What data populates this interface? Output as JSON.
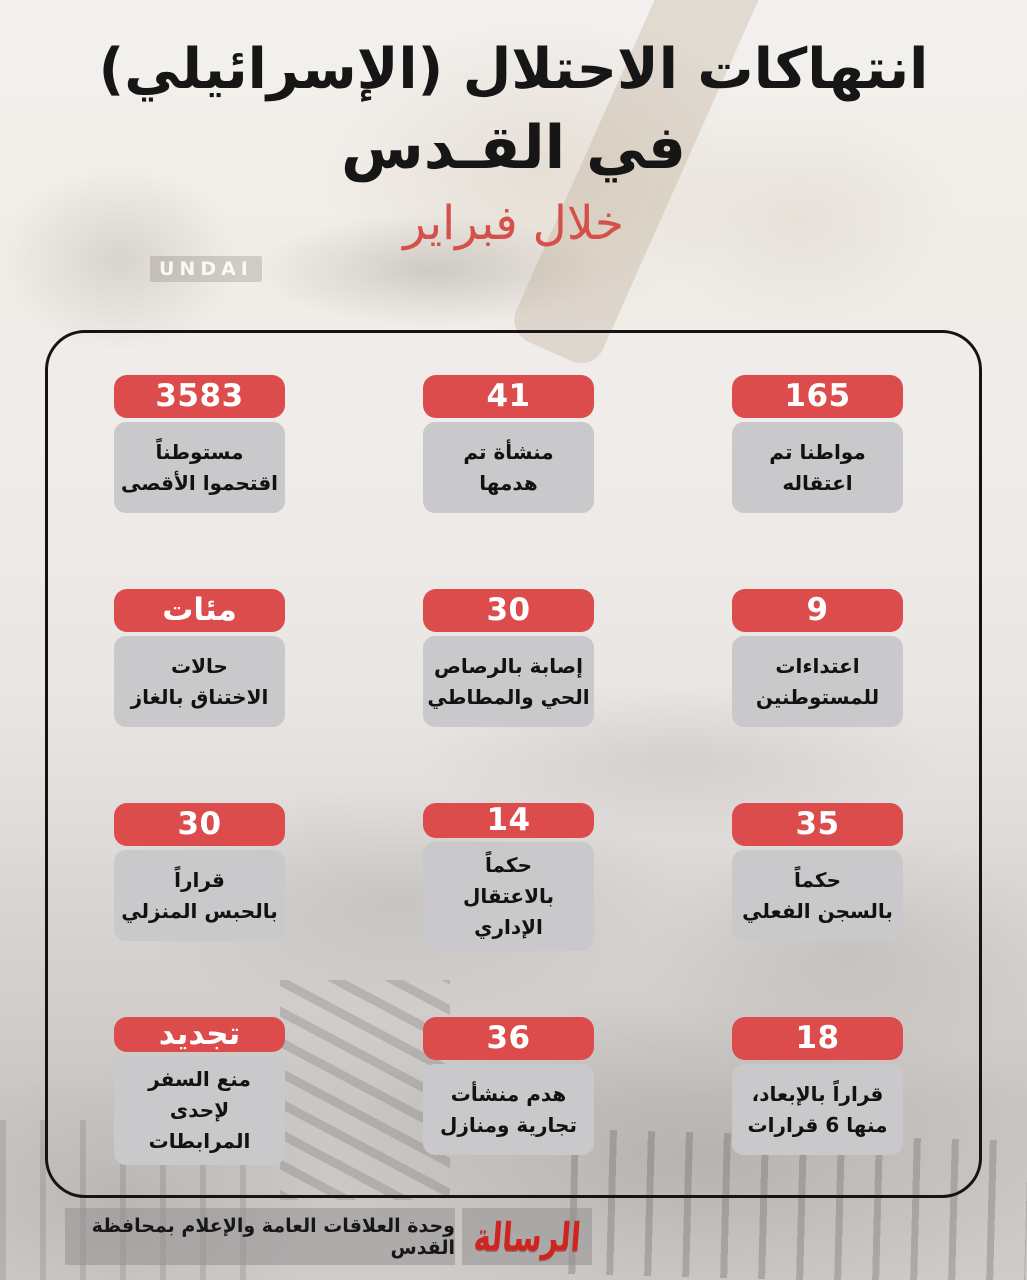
{
  "title": {
    "line1": "انتهاكات الاحتلال (الإسرائيلي)",
    "line2": "في القـدس",
    "subtitle": "خلال فبراير"
  },
  "colors": {
    "accent_red": "#dc4c4c",
    "card_gray": "#c9c9cb",
    "title_black": "#161616",
    "subtitle_red": "#d6504a"
  },
  "background": {
    "machine_text": "UNDAI"
  },
  "stats": [
    {
      "value": "165",
      "label": "مواطنا تم\nاعتقاله"
    },
    {
      "value": "41",
      "label": "منشأة تم\nهدمها"
    },
    {
      "value": "3583",
      "label": "مستوطناً\nاقتحموا الأقصى"
    },
    {
      "value": "9",
      "label": "اعتداءات\nللمستوطنين"
    },
    {
      "value": "30",
      "label": "إصابة بالرصاص\nالحي والمطاطي"
    },
    {
      "value": "مئات",
      "label": "حالات\nالاختناق بالغاز"
    },
    {
      "value": "35",
      "label": "حكماً\nبالسجن الفعلي"
    },
    {
      "value": "14",
      "label": "حكماً\nبالاعتقال الإداري"
    },
    {
      "value": "30",
      "label": "قراراً\nبالحبس المنزلي"
    },
    {
      "value": "18",
      "label": "قراراً بالإبعاد،\nمنها 6 قرارات"
    },
    {
      "value": "36",
      "label": "هدم منشأت\nتجارية ومنازل"
    },
    {
      "value": "تجديد",
      "label": "منع السفر\nلإحدى المرابطات"
    }
  ],
  "footer": {
    "credit": "وحدة العلاقات العامة والإعلام بمحافظة القدس",
    "logo": "الرسالة"
  }
}
